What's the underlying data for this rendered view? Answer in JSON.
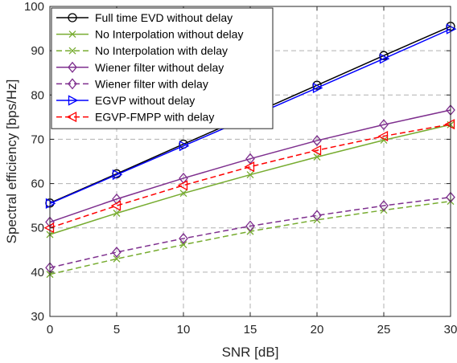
{
  "chart_data": {
    "type": "line",
    "title": "",
    "xlabel": "SNR [dB]",
    "ylabel": "Spectral efficiency [bps/Hz]",
    "xlim": [
      0,
      30
    ],
    "ylim": [
      30,
      100
    ],
    "xticks": [
      0,
      5,
      10,
      15,
      20,
      25,
      30
    ],
    "yticks": [
      30,
      40,
      50,
      60,
      70,
      80,
      90,
      100
    ],
    "grid": true,
    "legend_position": "top-left",
    "x": [
      0,
      5,
      10,
      15,
      20,
      25,
      30
    ],
    "series": [
      {
        "name": "Full time EVD without delay",
        "values": [
          55.6,
          62.2,
          68.9,
          75.5,
          82.2,
          88.9,
          95.5
        ],
        "color": "#000000",
        "dash": "solid",
        "marker": "circle"
      },
      {
        "name": "No Interpolation without delay",
        "values": [
          48.5,
          53.3,
          57.8,
          62.0,
          66.0,
          69.8,
          73.3
        ],
        "color": "#77ac30",
        "dash": "solid",
        "marker": "x"
      },
      {
        "name": "No Interpolation with delay",
        "values": [
          39.5,
          43.0,
          46.2,
          49.2,
          51.8,
          54.0,
          56.0
        ],
        "color": "#77ac30",
        "dash": "dashed",
        "marker": "x"
      },
      {
        "name": "Wiener filter without delay",
        "values": [
          51.3,
          56.5,
          61.2,
          65.6,
          69.7,
          73.3,
          76.6
        ],
        "color": "#7e2f8e",
        "dash": "solid",
        "marker": "diamond"
      },
      {
        "name": "Wiener filter with delay",
        "values": [
          41.0,
          44.5,
          47.6,
          50.4,
          52.8,
          55.0,
          56.9
        ],
        "color": "#7e2f8e",
        "dash": "dashed",
        "marker": "diamond"
      },
      {
        "name": "EGVP without delay",
        "values": [
          55.5,
          62.0,
          68.5,
          75.0,
          81.6,
          88.2,
          94.9
        ],
        "color": "#0000ff",
        "dash": "solid",
        "marker": "triangle-right"
      },
      {
        "name": "EGVP-FMPP with delay",
        "values": [
          50.0,
          55.0,
          59.6,
          63.8,
          67.5,
          70.7,
          73.4
        ],
        "color": "#ff0000",
        "dash": "dashed",
        "marker": "triangle-left"
      }
    ]
  }
}
